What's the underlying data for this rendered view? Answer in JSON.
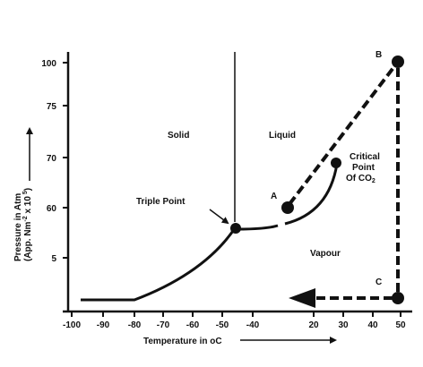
{
  "diagram": {
    "y_axis": {
      "title_line1": "Pressure in Atm",
      "title_line2": "(App. Nm",
      "title_exp1": "-2",
      "title_mid": " x 10",
      "title_exp2": " 5",
      "title_end": ")",
      "ticks": [
        "100",
        "75",
        "70",
        "60",
        "5"
      ]
    },
    "x_axis": {
      "title": "Temperature in ",
      "title_unit": "oC",
      "ticks": [
        "-100",
        "-90",
        "-80",
        "-70",
        "-60",
        "-50",
        "-40",
        "20",
        "30",
        "40",
        "50"
      ]
    },
    "regions": {
      "solid": "Solid",
      "liquid": "Liquid",
      "vapour": "Vapour"
    },
    "annotations": {
      "triple_point": "Triple Point",
      "critical_line1": "Critical",
      "critical_line2": "Point",
      "critical_line3": "Of CO",
      "critical_sub": "2"
    },
    "points": {
      "a": "A",
      "b": "B",
      "c": "C"
    },
    "colors": {
      "ink": "#111111",
      "background": "#ffffff"
    }
  }
}
